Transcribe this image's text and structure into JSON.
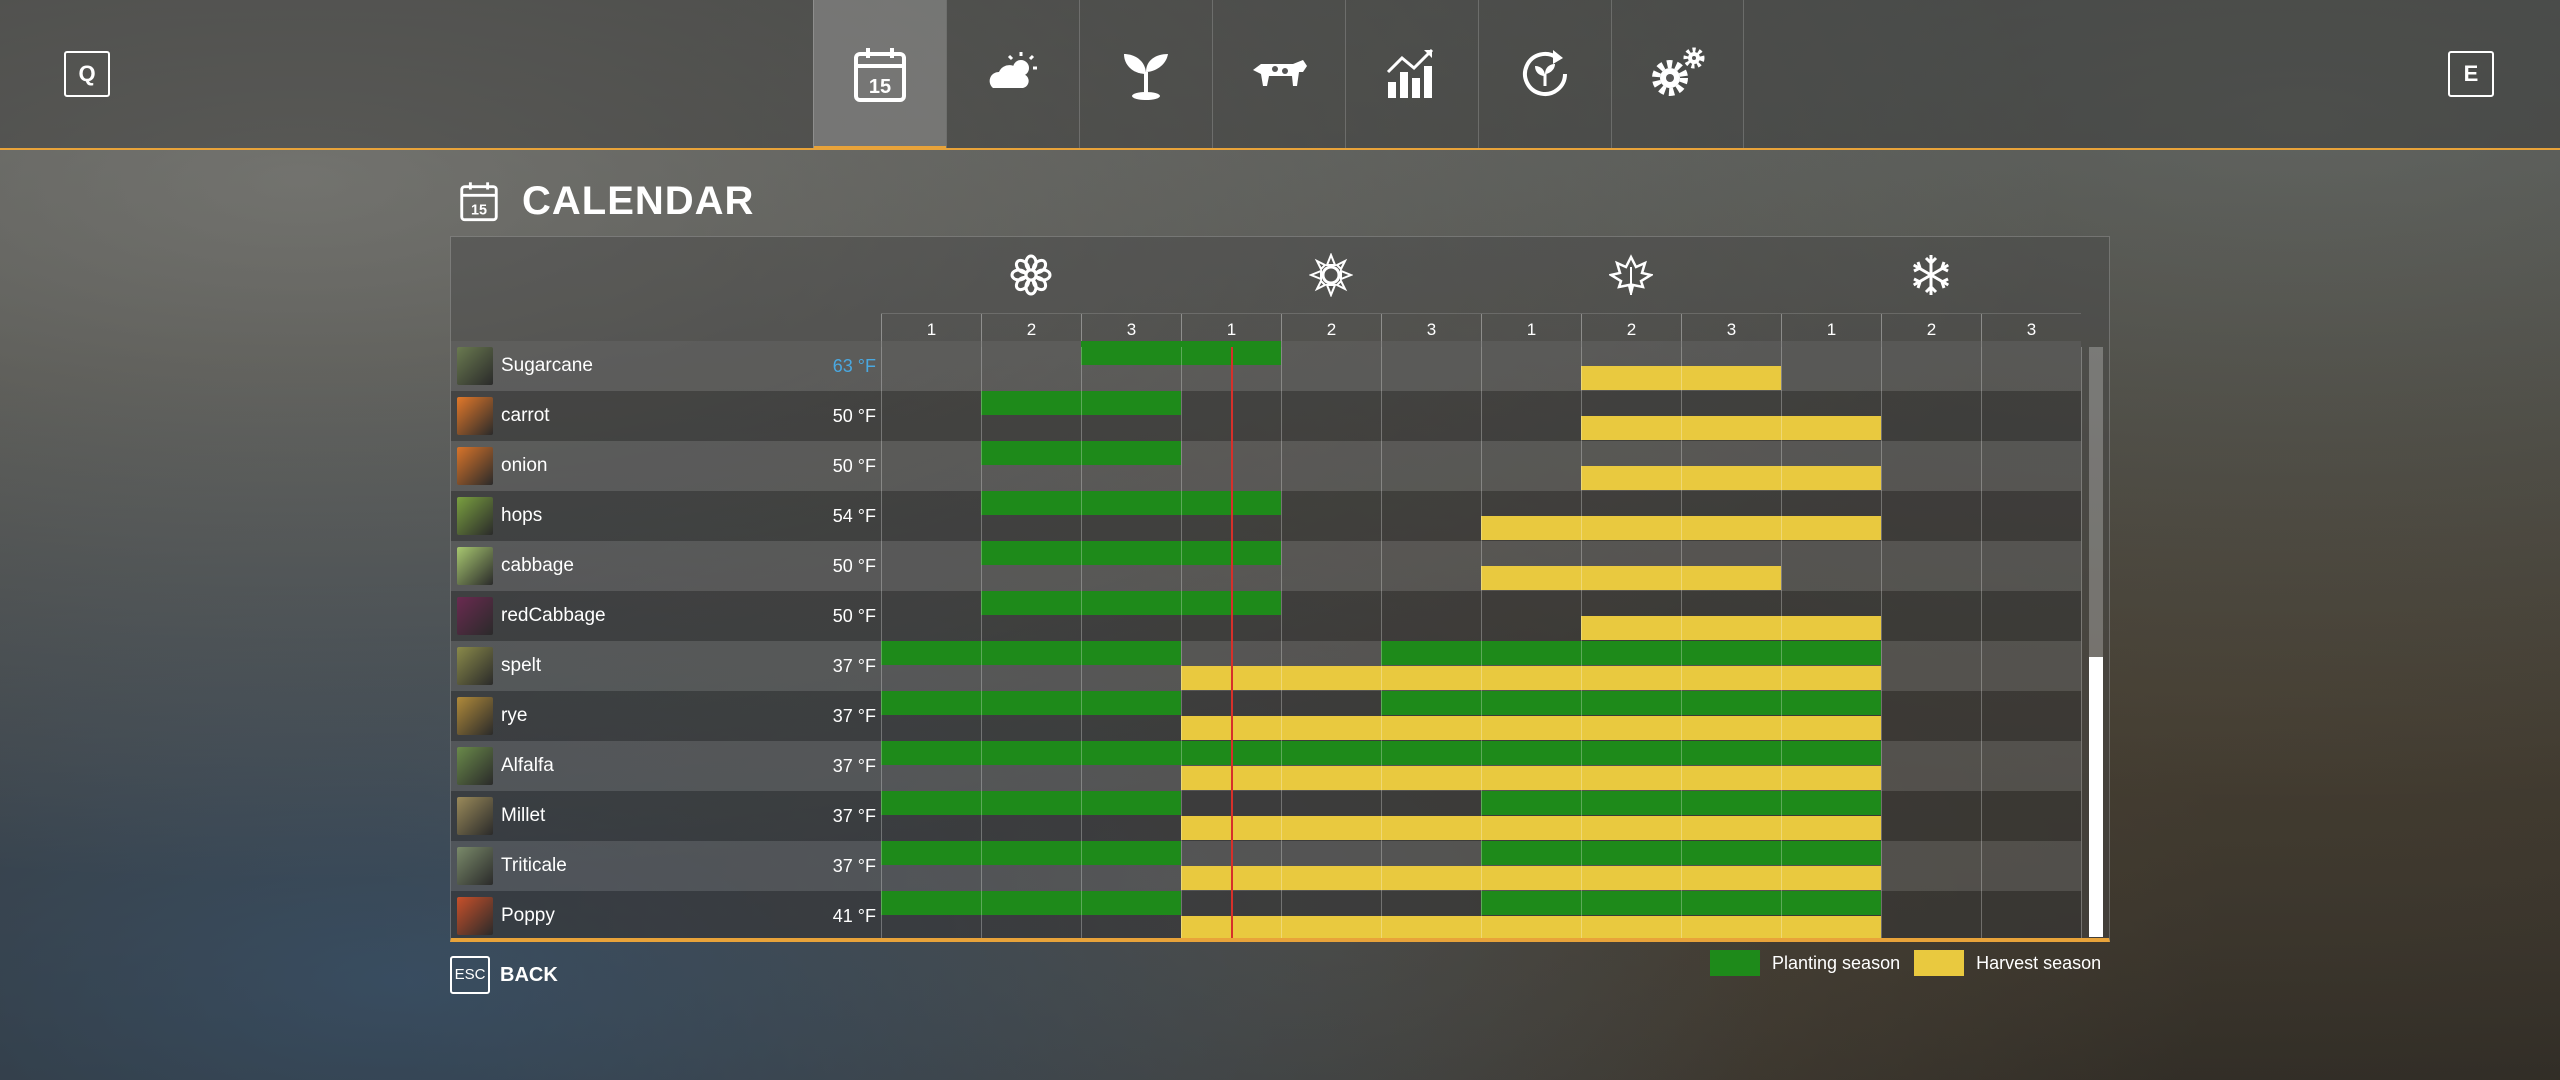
{
  "nav": {
    "prev_key": "Q",
    "next_key": "E",
    "tabs": [
      {
        "name": "calendar",
        "icon": "calendar-icon",
        "active": true
      },
      {
        "name": "weather",
        "icon": "weather-icon",
        "active": false
      },
      {
        "name": "crops",
        "icon": "sprout-icon",
        "active": false
      },
      {
        "name": "animals",
        "icon": "cow-icon",
        "active": false
      },
      {
        "name": "statistics",
        "icon": "chart-icon",
        "active": false
      },
      {
        "name": "crop-rotation",
        "icon": "rotation-icon",
        "active": false
      },
      {
        "name": "settings",
        "icon": "gears-icon",
        "active": false
      }
    ]
  },
  "page": {
    "title": "CALENDAR",
    "icon_day": "15"
  },
  "calendar": {
    "seasons": [
      {
        "name": "spring",
        "icon": "flower-icon"
      },
      {
        "name": "summer",
        "icon": "sun-icon"
      },
      {
        "name": "autumn",
        "icon": "leaf-icon"
      },
      {
        "name": "winter",
        "icon": "snowflake-icon"
      }
    ],
    "periods": [
      "1",
      "2",
      "3",
      "1",
      "2",
      "3",
      "1",
      "2",
      "3",
      "1",
      "2",
      "3"
    ],
    "current_period_position": 3.5,
    "crops": [
      {
        "name": "Sugarcane",
        "temp": "63 °F",
        "temp_highlight": true,
        "thumb_color": "#6a7a50",
        "plant": [
          [
            2,
            4
          ]
        ],
        "harvest": [
          [
            7,
            9
          ]
        ]
      },
      {
        "name": "carrot",
        "temp": "50 °F",
        "temp_highlight": false,
        "thumb_color": "#e2782a",
        "plant": [
          [
            1,
            3
          ]
        ],
        "harvest": [
          [
            7,
            10
          ]
        ]
      },
      {
        "name": "onion",
        "temp": "50 °F",
        "temp_highlight": false,
        "thumb_color": "#d8742a",
        "plant": [
          [
            1,
            3
          ]
        ],
        "harvest": [
          [
            7,
            10
          ]
        ]
      },
      {
        "name": "hops",
        "temp": "54 °F",
        "temp_highlight": false,
        "thumb_color": "#7aa040",
        "plant": [
          [
            1,
            4
          ]
        ],
        "harvest": [
          [
            6,
            10
          ]
        ]
      },
      {
        "name": "cabbage",
        "temp": "50 °F",
        "temp_highlight": false,
        "thumb_color": "#a8c870",
        "plant": [
          [
            1,
            4
          ]
        ],
        "harvest": [
          [
            6,
            9
          ]
        ]
      },
      {
        "name": "redCabbage",
        "temp": "50 °F",
        "temp_highlight": false,
        "thumb_color": "#6a2a50",
        "plant": [
          [
            1,
            4
          ]
        ],
        "harvest": [
          [
            7,
            10
          ]
        ]
      },
      {
        "name": "spelt",
        "temp": "37 °F",
        "temp_highlight": false,
        "thumb_color": "#8a8a4a",
        "plant": [
          [
            0,
            3
          ],
          [
            5,
            10
          ]
        ],
        "harvest": [
          [
            3,
            10
          ]
        ]
      },
      {
        "name": "rye",
        "temp": "37 °F",
        "temp_highlight": false,
        "thumb_color": "#b08a3a",
        "plant": [
          [
            0,
            3
          ],
          [
            5,
            10
          ]
        ],
        "harvest": [
          [
            3,
            10
          ]
        ]
      },
      {
        "name": "Alfalfa",
        "temp": "37 °F",
        "temp_highlight": false,
        "thumb_color": "#6a8a4a",
        "plant": [
          [
            0,
            10
          ]
        ],
        "harvest": [
          [
            3,
            10
          ]
        ]
      },
      {
        "name": "Millet",
        "temp": "37 °F",
        "temp_highlight": false,
        "thumb_color": "#9a8a5a",
        "plant": [
          [
            0,
            3
          ],
          [
            6,
            10
          ]
        ],
        "harvest": [
          [
            3,
            10
          ]
        ]
      },
      {
        "name": "Triticale",
        "temp": "37 °F",
        "temp_highlight": false,
        "thumb_color": "#7a8a6a",
        "plant": [
          [
            0,
            3
          ],
          [
            6,
            10
          ]
        ],
        "harvest": [
          [
            3,
            10
          ]
        ]
      },
      {
        "name": "Poppy",
        "temp": "41 °F",
        "temp_highlight": false,
        "thumb_color": "#c8502a",
        "plant": [
          [
            0,
            3
          ],
          [
            6,
            10
          ]
        ],
        "harvest": [
          [
            3,
            10
          ]
        ]
      }
    ]
  },
  "footer": {
    "esc_key": "ESC",
    "back_label": "BACK"
  },
  "legend": {
    "planting_label": "Planting season",
    "planting_color": "#1e8a1a",
    "harvest_label": "Harvest season",
    "harvest_color": "#e9c93f"
  }
}
